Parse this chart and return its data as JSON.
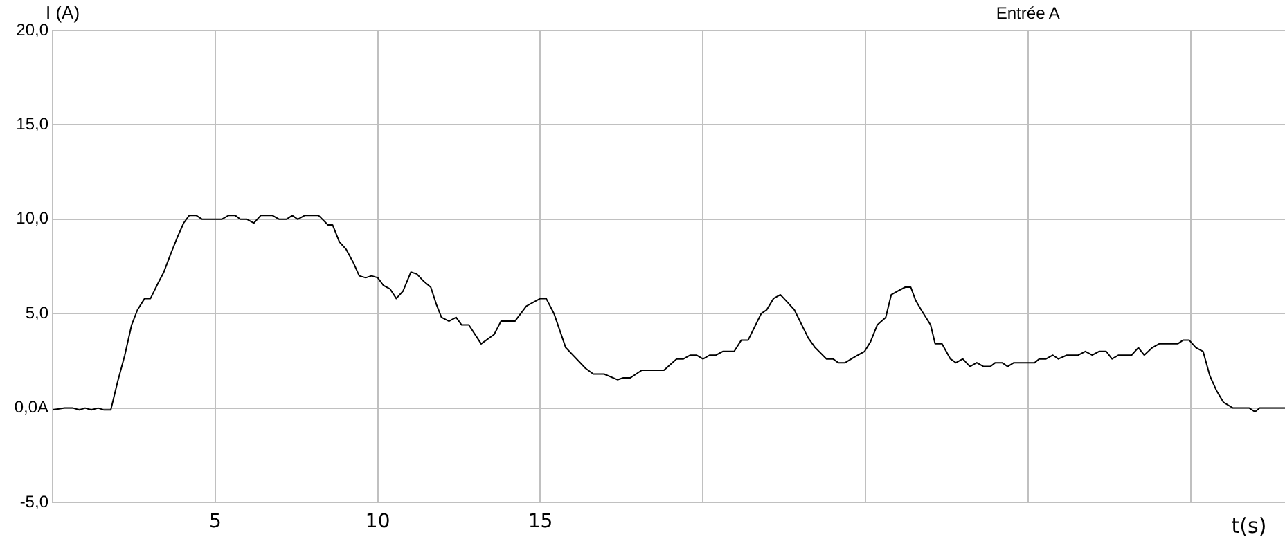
{
  "chart_data": {
    "type": "line",
    "title": "Entrée A",
    "xlabel": "t(s)",
    "ylabel": "I (A)",
    "x": [
      0,
      0.37,
      0.63,
      0.82,
      1.0,
      1.19,
      1.4,
      1.58,
      1.79,
      2.0,
      2.22,
      2.43,
      2.61,
      2.83,
      3.01,
      3.21,
      3.42,
      3.64,
      3.85,
      4.03,
      4.2,
      4.42,
      4.6,
      5.2,
      5.41,
      5.62,
      5.77,
      5.98,
      6.19,
      6.4,
      6.76,
      6.97,
      7.19,
      7.37,
      7.54,
      7.75,
      8.18,
      8.47,
      8.61,
      8.82,
      9.03,
      9.25,
      9.43,
      9.63,
      9.81,
      10.0,
      10.17,
      10.38,
      10.57,
      10.78,
      11.02,
      11.2,
      11.42,
      11.63,
      11.8,
      11.96,
      12.19,
      12.41,
      12.58,
      12.8,
      13.18,
      13.58,
      13.79,
      14.22,
      14.57,
      15.0,
      15.18,
      15.42,
      15.78,
      16.06,
      16.39,
      16.63,
      16.96,
      17.37,
      17.55,
      17.77,
      18.12,
      18.8,
      19.19,
      19.4,
      19.61,
      19.8,
      20.0,
      20.21,
      20.4,
      20.61,
      20.96,
      21.18,
      21.39,
      21.79,
      21.96,
      22.17,
      22.38,
      22.6,
      22.81,
      23.24,
      23.45,
      23.8,
      24.0,
      24.16,
      24.37,
      24.66,
      24.97,
      25.15,
      25.36,
      25.62,
      25.79,
      26.0,
      26.22,
      26.39,
      26.54,
      26.71,
      27.0,
      27.14,
      27.35,
      27.61,
      27.78,
      27.99,
      28.21,
      28.42,
      28.63,
      28.84,
      28.99,
      29.2,
      29.37,
      29.56,
      30.2,
      30.34,
      30.55,
      30.76,
      30.93,
      31.19,
      31.54,
      31.76,
      31.97,
      32.18,
      32.4,
      32.58,
      32.78,
      33.18,
      33.39,
      33.57,
      33.82,
      34.03,
      34.6,
      34.77,
      34.95,
      35.16,
      35.38,
      35.59,
      35.8,
      36.01,
      36.3,
      36.8,
      36.98,
      37.12,
      37.9
    ],
    "series": [
      {
        "color": "#000000",
        "values": [
          -0.1,
          0,
          0,
          -0.1,
          0,
          -0.1,
          0,
          -0.1,
          -0.1,
          1.4,
          2.8,
          4.4,
          5.2,
          5.8,
          5.8,
          6.5,
          7.2,
          8.2,
          9.1,
          9.8,
          10.2,
          10.2,
          10.0,
          10.0,
          10.2,
          10.2,
          10.0,
          10.0,
          9.8,
          10.2,
          10.2,
          10.0,
          10.0,
          10.2,
          10.0,
          10.2,
          10.2,
          9.7,
          9.7,
          8.8,
          8.4,
          7.7,
          7.0,
          6.9,
          7.0,
          6.9,
          6.5,
          6.3,
          5.8,
          6.2,
          7.2,
          7.1,
          6.7,
          6.4,
          5.5,
          4.8,
          4.6,
          4.8,
          4.4,
          4.4,
          3.4,
          3.9,
          4.6,
          4.6,
          5.4,
          5.8,
          5.8,
          5.0,
          3.2,
          2.7,
          2.1,
          1.8,
          1.8,
          1.5,
          1.6,
          1.6,
          2.0,
          2.0,
          2.6,
          2.6,
          2.8,
          2.8,
          2.6,
          2.8,
          2.8,
          3.0,
          3.0,
          3.6,
          3.6,
          5.0,
          5.2,
          5.8,
          6.0,
          5.6,
          5.2,
          3.7,
          3.2,
          2.6,
          2.6,
          2.4,
          2.4,
          2.7,
          3.0,
          3.5,
          4.4,
          4.8,
          6.0,
          6.2,
          6.4,
          6.4,
          5.7,
          5.2,
          4.4,
          3.4,
          3.4,
          2.6,
          2.4,
          2.6,
          2.2,
          2.4,
          2.2,
          2.2,
          2.4,
          2.4,
          2.2,
          2.4,
          2.4,
          2.6,
          2.6,
          2.8,
          2.6,
          2.8,
          2.8,
          3.0,
          2.8,
          3.0,
          3.0,
          2.6,
          2.8,
          2.8,
          3.2,
          2.8,
          3.2,
          3.4,
          3.4,
          3.6,
          3.6,
          3.2,
          3.0,
          1.7,
          0.9,
          0.3,
          0,
          0,
          -0.2,
          0,
          0
        ]
      }
    ],
    "xlim": [
      0,
      37.9
    ],
    "ylim": [
      -5,
      20
    ],
    "xticks": [
      5,
      10,
      15,
      {
        "value": 20,
        "label": null
      },
      {
        "value": 25,
        "label": null
      },
      {
        "value": 30,
        "label": null
      },
      {
        "value": 35,
        "label": null
      }
    ],
    "yticks": [
      {
        "value": -5,
        "label": "-5,0"
      },
      {
        "value": 0,
        "label": "0,0A"
      },
      {
        "value": 5,
        "label": "5,0"
      },
      {
        "value": 10,
        "label": "10,0"
      },
      {
        "value": 15,
        "label": "15,0"
      },
      {
        "value": 20,
        "label": "20,0"
      }
    ],
    "grid": true,
    "marker": "none",
    "line_style": "solid"
  }
}
